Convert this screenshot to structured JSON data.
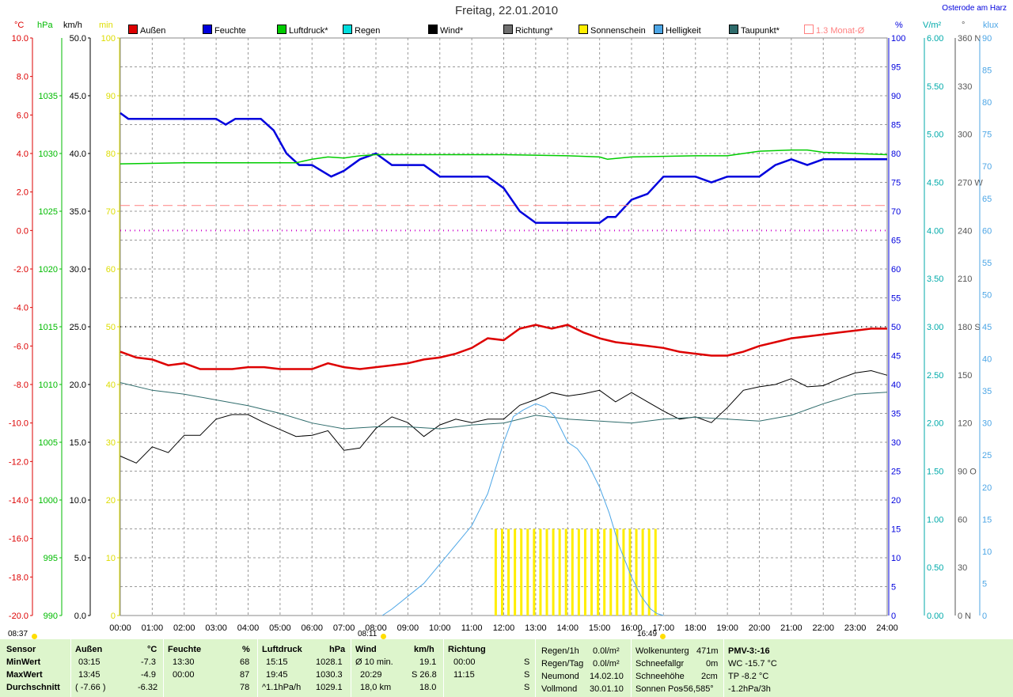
{
  "title": "Freitag, 22.01.2010",
  "location": "Osterode am Harz",
  "axis_units": {
    "temp": "°C",
    "pressure": "hPa",
    "wind": "km/h",
    "sun_min": "min",
    "humidity": "%",
    "radiation": "V/m²",
    "direction": "°",
    "brightness": "klux"
  },
  "colors": {
    "temp": "#dd0000",
    "humidity": "#0000dd",
    "pressure": "#00cc00",
    "rain": "#00cccc",
    "wind": "#000000",
    "direction": "#707070",
    "sunshine": "#ffee00",
    "brightness": "#4da6e6",
    "dewpoint": "#2e6b6b",
    "avg": "#ff8080",
    "sun_unit": "#dddd00",
    "radiation": "#00aaaa"
  },
  "legend": [
    {
      "label": "Außen",
      "color": "#dd0000"
    },
    {
      "label": "Feuchte",
      "color": "#0000dd"
    },
    {
      "label": "Luftdruck*",
      "color": "#00cc00"
    },
    {
      "label": "Regen",
      "color": "#00dddd"
    },
    {
      "label": "Wind*",
      "color": "#000000"
    },
    {
      "label": "Richtung*",
      "color": "#707070"
    },
    {
      "label": "Sonnenschein",
      "color": "#ffee00"
    },
    {
      "label": "Helligkeit",
      "color": "#4da6e6"
    },
    {
      "label": "Taupunkt*",
      "color": "#2e6b6b"
    },
    {
      "label": "1.3 Monat-Ø",
      "color": "#ff8080"
    }
  ],
  "markers": {
    "sunrise": "08:11",
    "sunset": "16:49",
    "left": "08:37"
  },
  "chart_data": {
    "type": "line",
    "title": "Freitag, 22.01.2010",
    "x_unit": "hours",
    "x_ticks": [
      "00:00",
      "01:00",
      "02:00",
      "03:00",
      "04:00",
      "05:00",
      "06:00",
      "07:00",
      "08:00",
      "09:00",
      "10:00",
      "11:00",
      "12:00",
      "13:00",
      "14:00",
      "15:00",
      "16:00",
      "17:00",
      "18:00",
      "19:00",
      "20:00",
      "21:00",
      "22:00",
      "23:00",
      "24:00"
    ],
    "axes": {
      "temp": {
        "unit": "°C",
        "min": -20,
        "max": 10,
        "ticks": [
          "10.0",
          "8.0",
          "6.0",
          "4.0",
          "2.0",
          "0.0",
          "-2.0",
          "-4.0",
          "-6.0",
          "-8.0",
          "-10.0",
          "-12.0",
          "-14.0",
          "-16.0",
          "-18.0",
          "-20.0"
        ]
      },
      "pressure": {
        "unit": "hPa",
        "min": 990,
        "max": 1040,
        "ticks": [
          "1035",
          "1030",
          "1025",
          "1020",
          "1015",
          "1010",
          "1005",
          "1000",
          "995",
          "990"
        ]
      },
      "wind": {
        "unit": "km/h",
        "min": 0,
        "max": 50,
        "ticks": [
          "50.0",
          "45.0",
          "40.0",
          "35.0",
          "30.0",
          "25.0",
          "20.0",
          "15.0",
          "10.0",
          "5.0",
          "0.0"
        ]
      },
      "sun_min": {
        "unit": "min",
        "min": 0,
        "max": 100,
        "ticks": [
          "100",
          "90",
          "80",
          "70",
          "60",
          "50",
          "40",
          "30",
          "20",
          "10",
          "0"
        ]
      },
      "humidity": {
        "unit": "%",
        "min": 0,
        "max": 100,
        "ticks": [
          "100",
          "95",
          "90",
          "85",
          "80",
          "75",
          "70",
          "65",
          "60",
          "55",
          "50",
          "45",
          "40",
          "35",
          "30",
          "25",
          "20",
          "15",
          "10",
          "5",
          "0"
        ]
      },
      "radiation": {
        "unit": "V/m²",
        "min": 0,
        "max": 6,
        "ticks": [
          "6.00",
          "5.50",
          "5.00",
          "4.50",
          "4.00",
          "3.50",
          "3.00",
          "2.50",
          "2.00",
          "1.50",
          "1.00",
          "0.50",
          "0.00"
        ]
      },
      "direction": {
        "unit": "°",
        "min": 0,
        "max": 360,
        "ticks": [
          "360 N",
          "330",
          "300",
          "270 W",
          "240",
          "210",
          "180 S",
          "150",
          "120",
          "90 O",
          "60",
          "30",
          "0 N"
        ]
      },
      "brightness": {
        "unit": "klux",
        "min": 0,
        "max": 90,
        "ticks": [
          "90",
          "85",
          "80",
          "75",
          "70",
          "65",
          "60",
          "55",
          "50",
          "45",
          "40",
          "35",
          "30",
          "25",
          "20",
          "15",
          "10",
          "5",
          "0"
        ]
      }
    },
    "series": [
      {
        "name": "Außen",
        "axis": "temp",
        "color": "#dd0000",
        "x": [
          0,
          0.5,
          1,
          1.5,
          2,
          2.5,
          3,
          3.5,
          4,
          4.5,
          5,
          5.5,
          6,
          6.5,
          7,
          7.5,
          8,
          8.5,
          9,
          9.5,
          10,
          10.5,
          11,
          11.5,
          12,
          12.5,
          13,
          13.5,
          14,
          14.5,
          15,
          15.5,
          16,
          16.5,
          17,
          17.5,
          18,
          18.5,
          19,
          19.5,
          20,
          20.5,
          21,
          21.5,
          22,
          22.5,
          23,
          23.5,
          24
        ],
        "values": [
          -6.3,
          -6.6,
          -6.7,
          -7,
          -6.9,
          -7.2,
          -7.2,
          -7.2,
          -7.1,
          -7.1,
          -7.2,
          -7.2,
          -7.2,
          -6.9,
          -7.1,
          -7.2,
          -7.1,
          -7,
          -6.9,
          -6.7,
          -6.6,
          -6.4,
          -6.1,
          -5.6,
          -5.7,
          -5.1,
          -4.9,
          -5.1,
          -4.9,
          -5.3,
          -5.6,
          -5.8,
          -5.9,
          -6,
          -6.1,
          -6.3,
          -6.4,
          -6.5,
          -6.5,
          -6.3,
          -6,
          -5.8,
          -5.6,
          -5.5,
          -5.4,
          -5.3,
          -5.2,
          -5.1,
          -5.1
        ]
      },
      {
        "name": "Feuchte",
        "axis": "humidity",
        "color": "#0000dd",
        "x": [
          0,
          0.25,
          1,
          2,
          3,
          3.3,
          3.6,
          4,
          4.4,
          4.8,
          5.2,
          5.6,
          6,
          6.3,
          6.6,
          7,
          7.5,
          8,
          8.5,
          9,
          9.5,
          10,
          10.5,
          11,
          11.5,
          12,
          12.5,
          13,
          13.5,
          14,
          14.5,
          15,
          15.25,
          15.5,
          16,
          16.5,
          17,
          17.5,
          18,
          18.5,
          19,
          19.5,
          20,
          20.5,
          21,
          21.5,
          22,
          22.5,
          23,
          23.5,
          24
        ],
        "values": [
          87,
          86,
          86,
          86,
          86,
          85,
          86,
          86,
          86,
          84,
          80,
          78,
          78,
          77,
          76,
          77,
          79,
          80,
          78,
          78,
          78,
          76,
          76,
          76,
          76,
          74,
          70,
          68,
          68,
          68,
          68,
          68,
          69,
          69,
          72,
          73,
          76,
          76,
          76,
          75,
          76,
          76,
          76,
          78,
          79,
          78,
          79,
          79,
          79,
          79,
          79
        ]
      },
      {
        "name": "Luftdruck*",
        "axis": "pressure",
        "color": "#00cc00",
        "x": [
          0,
          2,
          4,
          5.5,
          6,
          6.5,
          7,
          7.5,
          8,
          10,
          12,
          14,
          15,
          15.25,
          16,
          18,
          19,
          19.5,
          20,
          21,
          21.5,
          22,
          23,
          24
        ],
        "values": [
          1029.1,
          1029.2,
          1029.2,
          1029.2,
          1029.5,
          1029.7,
          1029.6,
          1029.8,
          1029.9,
          1029.9,
          1029.9,
          1029.8,
          1029.7,
          1029.5,
          1029.7,
          1029.8,
          1029.8,
          1030,
          1030.2,
          1030.3,
          1030.3,
          1030.1,
          1030,
          1029.9
        ]
      },
      {
        "name": "Wind*",
        "axis": "wind",
        "color": "#000000",
        "x": [
          0,
          0.5,
          1,
          1.5,
          2,
          2.5,
          3,
          3.5,
          4,
          4.5,
          5,
          5.5,
          6,
          6.5,
          7,
          7.5,
          8,
          8.5,
          9,
          9.5,
          10,
          10.5,
          11,
          11.5,
          12,
          12.5,
          13,
          13.5,
          14,
          14.5,
          15,
          15.5,
          16,
          16.5,
          17,
          17.5,
          18,
          18.5,
          19,
          19.5,
          20,
          20.5,
          21,
          21.5,
          22,
          22.5,
          23,
          23.5,
          24
        ],
        "values": [
          13.8,
          13.2,
          14.6,
          14.1,
          15.6,
          15.6,
          17,
          17.4,
          17.4,
          16.7,
          16.1,
          15.5,
          15.6,
          16,
          14.3,
          14.5,
          16.2,
          17.2,
          16.7,
          15.5,
          16.5,
          17,
          16.7,
          17,
          17,
          18.2,
          18.7,
          19.3,
          19,
          19.2,
          19.5,
          18.5,
          19.3,
          18.5,
          17.7,
          17,
          17.2,
          16.7,
          18,
          19.5,
          19.8,
          20,
          20.5,
          19.8,
          19.9,
          20.5,
          21,
          21.2,
          20.8
        ]
      },
      {
        "name": "Taupunkt*",
        "axis": "temp",
        "color": "#2e6b6b",
        "x": [
          0,
          1,
          2,
          3,
          4,
          5,
          6,
          7,
          8,
          9,
          10,
          11,
          12,
          13,
          14,
          15,
          16,
          17,
          18,
          19,
          20,
          21,
          22,
          23,
          24
        ],
        "values": [
          -7.9,
          -8.3,
          -8.5,
          -8.8,
          -9.1,
          -9.5,
          -10,
          -10.3,
          -10.2,
          -10.2,
          -10.3,
          -10.1,
          -10,
          -9.6,
          -9.8,
          -9.9,
          -10,
          -9.8,
          -9.7,
          -9.8,
          -9.9,
          -9.6,
          -9,
          -8.5,
          -8.4
        ]
      },
      {
        "name": "Helligkeit",
        "axis": "brightness",
        "color": "#4da6e6",
        "x": [
          8.2,
          8.5,
          9,
          9.5,
          10,
          10.5,
          11,
          11.5,
          12,
          12.3,
          12.6,
          13,
          13.3,
          13.6,
          14,
          14.3,
          14.6,
          15,
          15.3,
          15.6,
          16,
          16.3,
          16.6,
          16.8,
          17
        ],
        "values": [
          0,
          1,
          3,
          5,
          8,
          11,
          14,
          19,
          27,
          31,
          32,
          33,
          32.5,
          31,
          27,
          26,
          24,
          20,
          16,
          11,
          6,
          3,
          1,
          0.3,
          0
        ]
      },
      {
        "name": "1.3 Monat-Ø",
        "axis": "temp",
        "color": "#ff8080",
        "dashed": true,
        "x": [
          0,
          24
        ],
        "values": [
          1.3,
          1.3
        ]
      }
    ],
    "sunshine": {
      "axis": "sun_min",
      "color": "#ffee00",
      "start": 11.75,
      "end": 16.75,
      "interval": 0.2,
      "value": 15
    },
    "reference_lines": [
      {
        "axis": "temp",
        "value": 0,
        "color": "#cc00cc",
        "style": "dotted"
      },
      {
        "axis": "humidity",
        "value": 50,
        "color": "#555555",
        "style": "dotted"
      }
    ]
  },
  "stats": {
    "headers": [
      "Sensor",
      "Außen",
      "°C",
      "Feuchte",
      "%",
      "Luftdruck",
      "hPa",
      "Wind",
      "km/h",
      "Richtung"
    ],
    "row_labels": [
      "MinWert",
      "MaxWert",
      "Durchschnitt"
    ],
    "aussen": [
      [
        "03:15",
        "-7.3"
      ],
      [
        "13:45",
        "-4.9"
      ],
      [
        "( -7.66 )",
        "-6.32"
      ]
    ],
    "feuchte": [
      [
        "13:30",
        "68"
      ],
      [
        "00:00",
        "87"
      ],
      [
        "",
        "78"
      ]
    ],
    "luftdruck": [
      [
        "15:15",
        "1028.1"
      ],
      [
        "19:45",
        "1030.3"
      ],
      [
        "^1.1hPa/h",
        "1029.1"
      ]
    ],
    "wind": [
      [
        "Ø 10 min.",
        "19.1"
      ],
      [
        "20:29",
        "S 26.8"
      ],
      [
        "18,0 km",
        "18.0"
      ]
    ],
    "richtung": [
      [
        "00:00",
        "S"
      ],
      [
        "11:15",
        "S"
      ],
      [
        "",
        "S"
      ]
    ],
    "regen": [
      [
        "Regen/1h",
        "0.0l/m²"
      ],
      [
        "Regen/Tag",
        "0.0l/m²"
      ],
      [
        "Neumond",
        "14.02.10"
      ],
      [
        "Vollmond",
        "30.01.10"
      ]
    ],
    "wolken": [
      [
        "Wolkenunterg",
        "471m"
      ],
      [
        "Schneefallgr",
        "0m"
      ],
      [
        "Schneehöhe",
        "2cm"
      ],
      [
        "Sonnen Pos",
        "-56,585°"
      ]
    ],
    "pmv": [
      "PMV-3:-16",
      "WC -15.7 °C",
      "TP -8.2 °C",
      "-1.2hPa/3h"
    ]
  }
}
